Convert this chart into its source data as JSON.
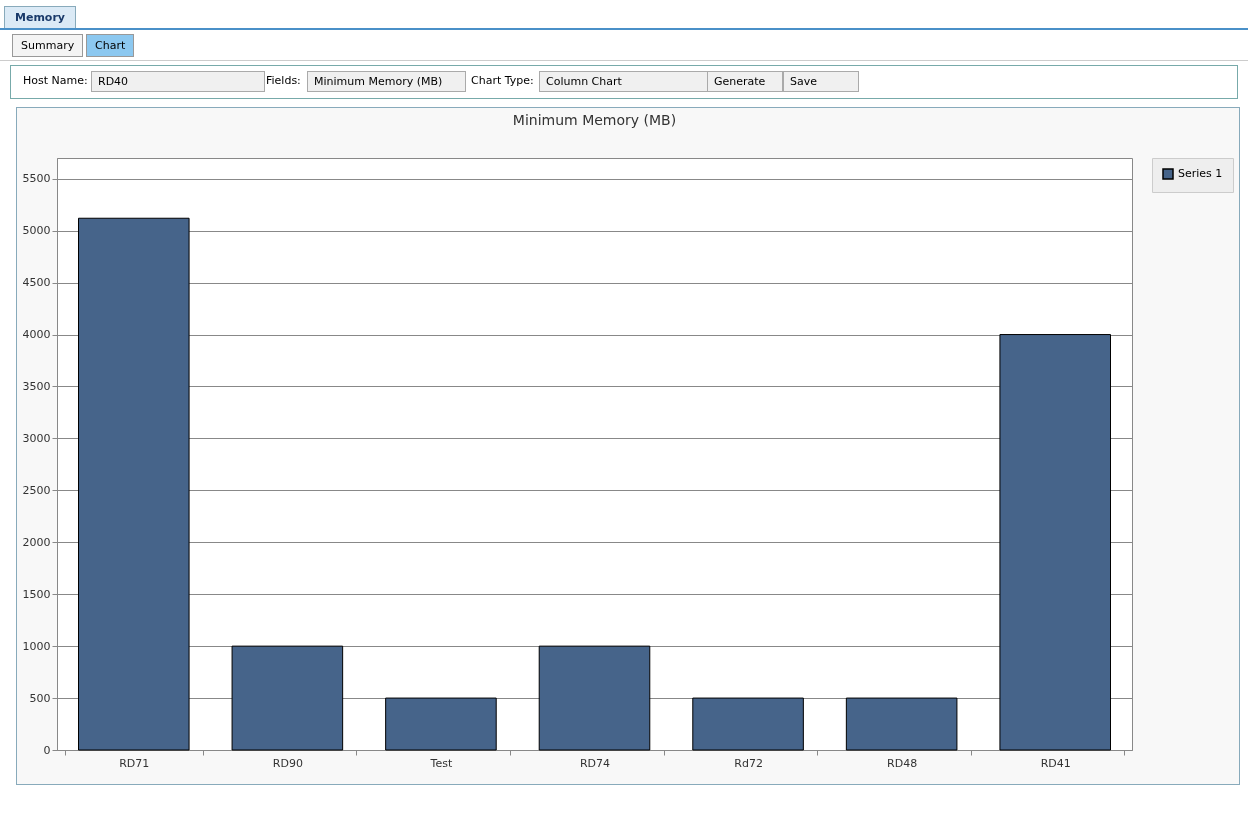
{
  "chart_data": {
    "type": "bar",
    "title": "Minimum Memory (MB)",
    "categories": [
      "RD71",
      "RD90",
      "Test",
      "RD74",
      "Rd72",
      "RD48",
      "RD41"
    ],
    "series": [
      {
        "name": "Series 1",
        "color": "#46648a",
        "values": [
          5120,
          1000,
          500,
          1000,
          500,
          500,
          4000
        ]
      }
    ],
    "ylim": [
      0,
      5700
    ],
    "yticks": [
      0,
      500,
      1000,
      1500,
      2000,
      2500,
      3000,
      3500,
      4000,
      4500,
      5000,
      5500
    ],
    "grid": "y",
    "legend": "right",
    "annotations": [
      "Memory",
      "Summary",
      "Chart",
      "Host Name:",
      "RD40",
      "Fields:",
      "Minimum Memory (MB)",
      "Chart Type:",
      "Column Chart",
      "Generate",
      "Save"
    ]
  }
}
